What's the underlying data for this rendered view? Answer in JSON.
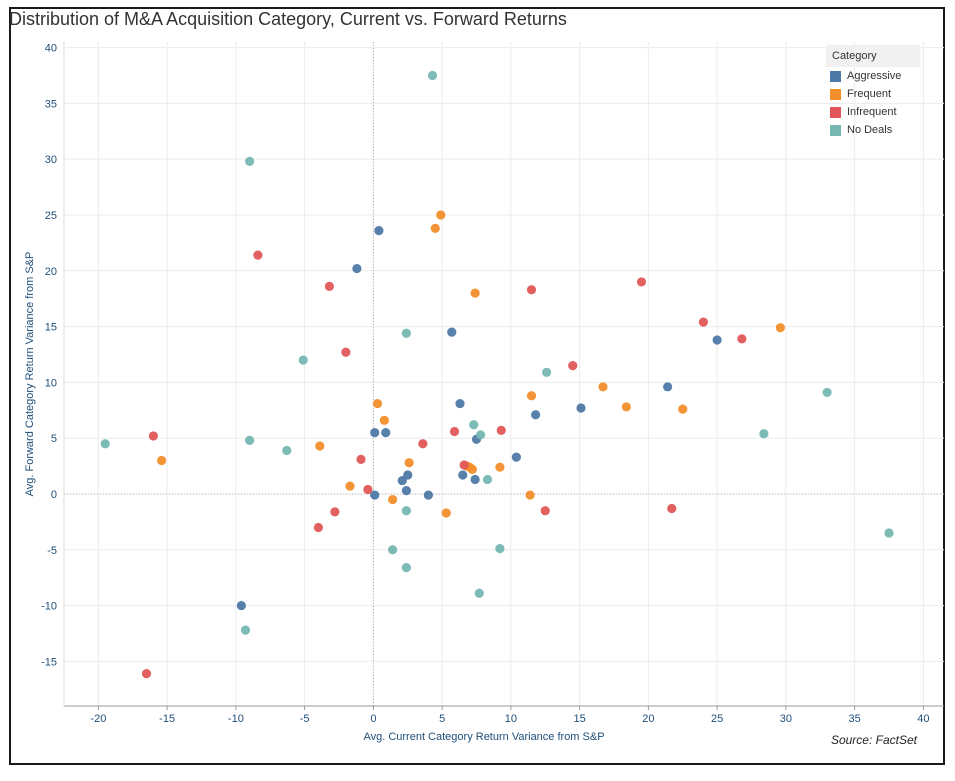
{
  "chart_data": {
    "type": "scatter",
    "title": "Distribution of M&A Acquisition Category, Current vs. Forward Returns",
    "xlabel": "Avg. Current Category Return Variance from S&P",
    "ylabel": "Avg. Forward Category Return Variance from S&P",
    "source": "Source: FactSet",
    "xlim": [
      -22.5,
      41.5
    ],
    "ylim": [
      -19,
      40.5
    ],
    "x_ticks": [
      -20,
      -15,
      -10,
      -5,
      0,
      5,
      10,
      15,
      20,
      25,
      30,
      35,
      40
    ],
    "y_ticks": [
      -15,
      -10,
      -5,
      0,
      5,
      10,
      15,
      20,
      25,
      30,
      35,
      40
    ],
    "grid": true,
    "legend_position": "top-right",
    "legend_title": "Category",
    "series": [
      {
        "name": "Aggressive",
        "color": "#4e79a7",
        "points": [
          [
            0.4,
            23.6
          ],
          [
            -1.2,
            20.2
          ],
          [
            5.7,
            14.5
          ],
          [
            6.3,
            8.1
          ],
          [
            0.1,
            5.5
          ],
          [
            0.9,
            5.5
          ],
          [
            7.5,
            4.9
          ],
          [
            2.1,
            1.2
          ],
          [
            2.5,
            1.7
          ],
          [
            2.4,
            0.3
          ],
          [
            0.1,
            -0.1
          ],
          [
            4.0,
            -0.1
          ],
          [
            6.5,
            1.7
          ],
          [
            7.4,
            1.3
          ],
          [
            10.4,
            3.3
          ],
          [
            11.8,
            7.1
          ],
          [
            15.1,
            7.7
          ],
          [
            21.4,
            9.6
          ],
          [
            25.0,
            13.8
          ],
          [
            -9.6,
            -10.0
          ]
        ]
      },
      {
        "name": "Frequent",
        "color": "#f28e2b",
        "points": [
          [
            4.9,
            25.0
          ],
          [
            4.5,
            23.8
          ],
          [
            7.4,
            18.0
          ],
          [
            0.3,
            8.1
          ],
          [
            0.8,
            6.6
          ],
          [
            -3.9,
            4.3
          ],
          [
            2.6,
            2.8
          ],
          [
            -1.7,
            0.7
          ],
          [
            1.4,
            -0.5
          ],
          [
            5.3,
            -1.7
          ],
          [
            6.8,
            2.5
          ],
          [
            7.0,
            2.4
          ],
          [
            7.2,
            2.2
          ],
          [
            9.2,
            2.4
          ],
          [
            11.4,
            -0.1
          ],
          [
            11.5,
            8.8
          ],
          [
            16.7,
            9.6
          ],
          [
            18.4,
            7.8
          ],
          [
            22.5,
            7.6
          ],
          [
            29.6,
            14.9
          ],
          [
            -15.4,
            3.0
          ]
        ]
      },
      {
        "name": "Infrequent",
        "color": "#e15759",
        "points": [
          [
            -8.4,
            21.4
          ],
          [
            -3.2,
            18.6
          ],
          [
            -2.0,
            12.7
          ],
          [
            3.6,
            4.5
          ],
          [
            5.9,
            5.6
          ],
          [
            -0.9,
            3.1
          ],
          [
            -0.4,
            0.4
          ],
          [
            -2.8,
            -1.6
          ],
          [
            -4.0,
            -3.0
          ],
          [
            9.3,
            5.7
          ],
          [
            11.5,
            18.3
          ],
          [
            12.5,
            -1.5
          ],
          [
            14.5,
            11.5
          ],
          [
            19.5,
            19.0
          ],
          [
            21.7,
            -1.3
          ],
          [
            24.0,
            15.4
          ],
          [
            26.8,
            13.9
          ],
          [
            -16.0,
            5.2
          ],
          [
            -16.5,
            -16.1
          ],
          [
            6.6,
            2.6
          ]
        ]
      },
      {
        "name": "No Deals",
        "color": "#76b7b2",
        "points": [
          [
            4.3,
            37.5
          ],
          [
            -9.0,
            29.8
          ],
          [
            2.4,
            14.4
          ],
          [
            -5.1,
            12.0
          ],
          [
            -9.0,
            4.8
          ],
          [
            -6.3,
            3.9
          ],
          [
            -19.5,
            4.5
          ],
          [
            7.3,
            6.2
          ],
          [
            7.8,
            5.3
          ],
          [
            8.3,
            1.3
          ],
          [
            2.4,
            -1.5
          ],
          [
            1.4,
            -5.0
          ],
          [
            2.4,
            -6.6
          ],
          [
            7.7,
            -8.9
          ],
          [
            9.2,
            -4.9
          ],
          [
            12.6,
            10.9
          ],
          [
            28.4,
            5.4
          ],
          [
            33.0,
            9.1
          ],
          [
            37.5,
            -3.5
          ],
          [
            -9.3,
            -12.2
          ]
        ]
      }
    ]
  }
}
